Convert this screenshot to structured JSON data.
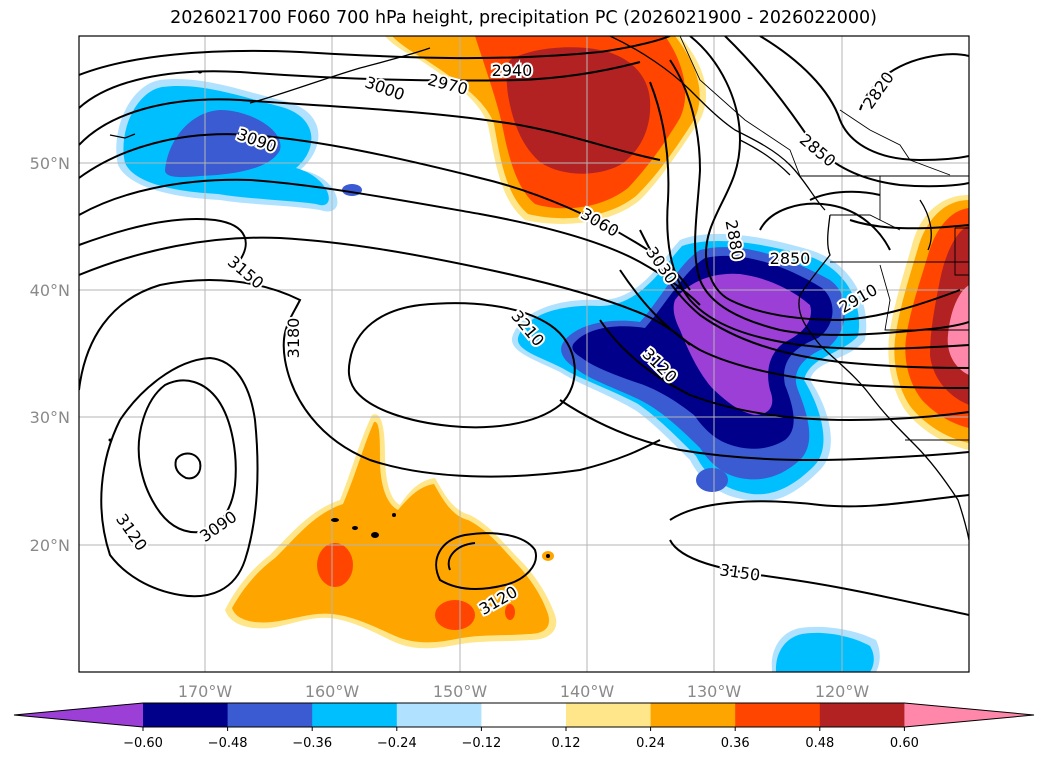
{
  "title": "2026021700 F060 700 hPa height, precipitation PC (2026021900 - 2026022000)",
  "lat_labels": [
    "50°N",
    "40°N",
    "30°N",
    "20°N"
  ],
  "lon_labels": [
    "170°W",
    "160°W",
    "150°W",
    "140°W",
    "130°W",
    "120°W"
  ],
  "contour_labels": [
    "2820",
    "2850",
    "2850",
    "2880",
    "2910",
    "2940",
    "2970",
    "3000",
    "3030",
    "3060",
    "3090",
    "3090",
    "3120",
    "3120",
    "3120",
    "3150",
    "3150",
    "3180",
    "3210"
  ],
  "colorbar": {
    "ticks": [
      "−0.60",
      "−0.48",
      "−0.36",
      "−0.24",
      "−0.12",
      "0.12",
      "0.24",
      "0.36",
      "0.48",
      "0.60"
    ],
    "colors": [
      "#9b3fd6",
      "#00008b",
      "#3a5bd1",
      "#00bfff",
      "#b0e2ff",
      "#ffffff",
      "#ffe68a",
      "#ffa500",
      "#ff4500",
      "#b22222",
      "#ff88aa"
    ]
  }
}
